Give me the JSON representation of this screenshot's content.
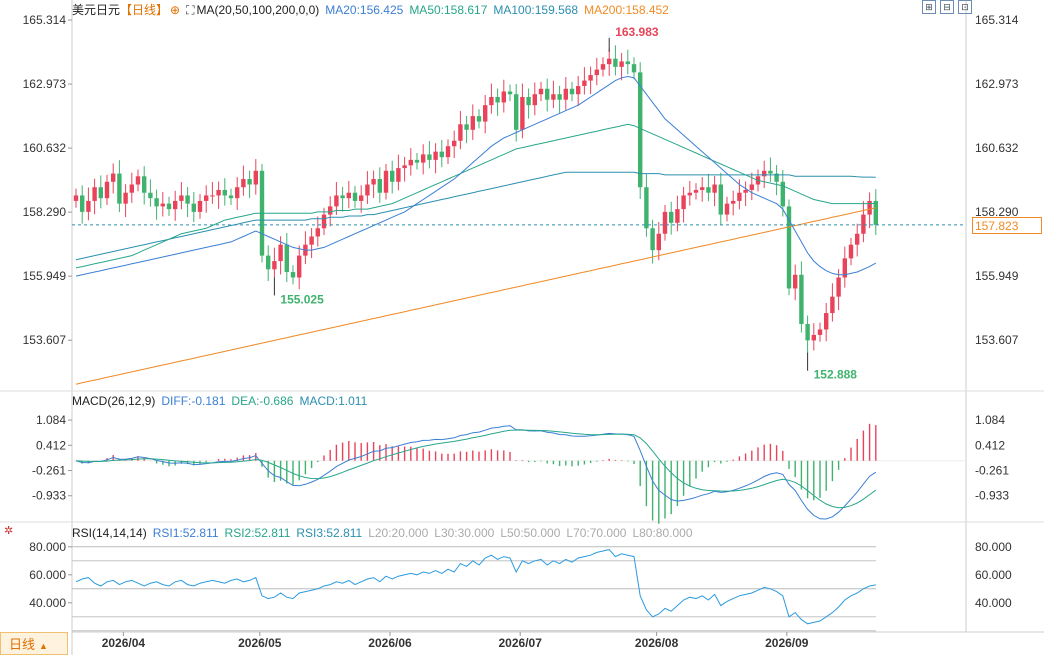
{
  "header": {
    "title": "美元日元",
    "period_tag": "【日线】",
    "ma_label": "MA(20,50,100,200,0,0)",
    "ma20": "MA20:156.425",
    "ma50": "MA50:158.617",
    "ma100": "MA100:159.568",
    "ma200": "MA200:158.452"
  },
  "macd_header": {
    "label": "MACD(26,12,9)",
    "diff": "DIFF:-0.181",
    "dea": "DEA:-0.686",
    "macd": "MACD:1.011"
  },
  "rsi_header": {
    "label": "RSI(14,14,14)",
    "rsi1": "RSI1:52.811",
    "rsi2": "RSI2:52.811",
    "rsi3": "RSI3:52.811",
    "l20": "L20:20.000",
    "l30": "L30:30.000",
    "l50": "L50:50.000",
    "l70": "L70:70.000",
    "l80": "L80:80.000"
  },
  "period_button": "日线",
  "last_price": "157.823",
  "colors": {
    "up": "#e8435a",
    "down": "#3fb36e",
    "ma20": "#3b7fd4",
    "ma50": "#27a68a",
    "ma100": "#2b8fb0",
    "ma200": "#f08a24",
    "diff": "#3b7fd4",
    "dea": "#27a68a"
  },
  "chart_data": [
    {
      "type": "candlestick",
      "name": "price",
      "yticks": [
        "165.314",
        "162.973",
        "160.632",
        "158.290",
        "155.949",
        "153.607"
      ],
      "ylim": [
        151.97,
        165.314
      ],
      "x_labels": [
        "2026/04",
        "2026/05",
        "2026/06",
        "2026/07",
        "2026/08",
        "2026/09"
      ],
      "last_value": 157.823,
      "max_label": "163.983",
      "min_label": "155.025",
      "min2_label": "152.888",
      "close": [
        158.9,
        158.3,
        158.7,
        159.2,
        158.8,
        159.4,
        159.7,
        158.6,
        159.0,
        159.3,
        159.6,
        159.0,
        158.8,
        158.5,
        158.6,
        158.4,
        158.7,
        158.9,
        158.6,
        158.3,
        158.7,
        158.9,
        158.9,
        159.1,
        158.9,
        158.8,
        159.2,
        159.5,
        159.3,
        159.8,
        156.7,
        156.2,
        156.5,
        157.1,
        156.1,
        155.9,
        156.7,
        157.1,
        157.4,
        157.7,
        158.2,
        158.5,
        158.9,
        158.8,
        159.0,
        158.7,
        158.9,
        159.3,
        159.5,
        159.0,
        159.8,
        159.4,
        159.9,
        160.0,
        160.2,
        160.1,
        160.4,
        160.2,
        160.5,
        160.3,
        160.7,
        160.9,
        161.5,
        161.3,
        161.8,
        161.6,
        162.2,
        162.5,
        162.3,
        162.7,
        162.6,
        161.3,
        162.5,
        162.2,
        162.6,
        162.8,
        162.4,
        162.6,
        162.4,
        162.8,
        162.6,
        162.9,
        163.1,
        163.3,
        163.5,
        163.7,
        163.9,
        163.6,
        163.8,
        163.7,
        163.4,
        159.2,
        157.7,
        156.9,
        157.5,
        158.3,
        157.9,
        158.4,
        158.9,
        159.0,
        159.1,
        159.2,
        159.0,
        159.3,
        158.2,
        158.6,
        158.7,
        159.0,
        159.1,
        159.3,
        159.6,
        159.8,
        159.7,
        159.4,
        158.5,
        155.5,
        156.0,
        154.2,
        153.6,
        153.8,
        154.0,
        154.6,
        155.2,
        155.9,
        156.6,
        157.1,
        157.5,
        158.2,
        158.7,
        157.823
      ],
      "ma20": [
        155.95,
        156.0,
        156.05,
        156.1,
        156.15,
        156.2,
        156.25,
        156.3,
        156.35,
        156.4,
        156.45,
        156.5,
        156.55,
        156.6,
        156.65,
        156.7,
        156.75,
        156.8,
        156.85,
        156.9,
        156.95,
        157.0,
        157.05,
        157.1,
        157.15,
        157.2,
        157.3,
        157.4,
        157.5,
        157.6,
        157.5,
        157.4,
        157.3,
        157.2,
        157.1,
        157.0,
        156.95,
        156.9,
        156.9,
        156.95,
        157.0,
        157.1,
        157.2,
        157.3,
        157.4,
        157.5,
        157.6,
        157.7,
        157.8,
        157.9,
        158.0,
        158.1,
        158.2,
        158.3,
        158.45,
        158.6,
        158.75,
        158.9,
        159.05,
        159.2,
        159.35,
        159.5,
        159.7,
        159.9,
        160.1,
        160.3,
        160.5,
        160.7,
        160.85,
        161.0,
        161.1,
        161.2,
        161.3,
        161.4,
        161.5,
        161.6,
        161.7,
        161.8,
        161.9,
        162.0,
        162.1,
        162.2,
        162.35,
        162.5,
        162.65,
        162.8,
        162.95,
        163.1,
        163.2,
        163.25,
        163.2,
        162.9,
        162.6,
        162.3,
        162.0,
        161.7,
        161.5,
        161.3,
        161.1,
        160.9,
        160.7,
        160.5,
        160.3,
        160.1,
        159.9,
        159.7,
        159.5,
        159.3,
        159.15,
        159.0,
        158.9,
        158.8,
        158.7,
        158.6,
        158.4,
        158.0,
        157.6,
        157.2,
        156.8,
        156.5,
        156.3,
        156.15,
        156.05,
        156.0,
        156.0,
        156.05,
        156.1,
        156.2,
        156.3,
        156.425
      ],
      "ma50": [
        156.25,
        156.3,
        156.35,
        156.4,
        156.45,
        156.5,
        156.55,
        156.6,
        156.65,
        156.7,
        156.8,
        156.9,
        157.0,
        157.1,
        157.2,
        157.3,
        157.4,
        157.5,
        157.55,
        157.6,
        157.65,
        157.7,
        157.8,
        157.9,
        158.0,
        158.05,
        158.1,
        158.15,
        158.2,
        158.25,
        158.25,
        158.25,
        158.25,
        158.25,
        158.25,
        158.25,
        158.25,
        158.25,
        158.25,
        158.3,
        158.3,
        158.3,
        158.35,
        158.35,
        158.35,
        158.4,
        158.4,
        158.4,
        158.45,
        158.5,
        158.55,
        158.6,
        158.7,
        158.8,
        158.9,
        159.0,
        159.1,
        159.2,
        159.3,
        159.4,
        159.5,
        159.6,
        159.7,
        159.8,
        159.9,
        160.0,
        160.1,
        160.2,
        160.3,
        160.4,
        160.5,
        160.6,
        160.65,
        160.7,
        160.75,
        160.8,
        160.85,
        160.9,
        160.95,
        161.0,
        161.05,
        161.1,
        161.15,
        161.2,
        161.25,
        161.3,
        161.35,
        161.4,
        161.45,
        161.5,
        161.45,
        161.35,
        161.25,
        161.15,
        161.05,
        160.95,
        160.85,
        160.75,
        160.65,
        160.55,
        160.45,
        160.35,
        160.25,
        160.15,
        160.05,
        159.95,
        159.85,
        159.75,
        159.65,
        159.55,
        159.45,
        159.4,
        159.35,
        159.3,
        159.25,
        159.15,
        159.05,
        158.95,
        158.85,
        158.75,
        158.7,
        158.65,
        158.6,
        158.6,
        158.6,
        158.6,
        158.6,
        158.6,
        158.6,
        158.617
      ],
      "ma100": [
        156.55,
        156.6,
        156.65,
        156.7,
        156.75,
        156.8,
        156.85,
        156.9,
        156.95,
        157.0,
        157.05,
        157.1,
        157.15,
        157.2,
        157.25,
        157.3,
        157.35,
        157.4,
        157.45,
        157.5,
        157.55,
        157.6,
        157.65,
        157.7,
        157.75,
        157.8,
        157.85,
        157.9,
        157.95,
        158.0,
        158.0,
        158.0,
        158.0,
        158.0,
        158.0,
        158.0,
        158.0,
        158.0,
        158.05,
        158.05,
        158.05,
        158.1,
        158.1,
        158.1,
        158.15,
        158.15,
        158.15,
        158.2,
        158.2,
        158.25,
        158.3,
        158.35,
        158.4,
        158.45,
        158.5,
        158.55,
        158.6,
        158.65,
        158.7,
        158.75,
        158.8,
        158.85,
        158.9,
        158.95,
        159.0,
        159.05,
        159.1,
        159.15,
        159.2,
        159.25,
        159.3,
        159.35,
        159.4,
        159.45,
        159.5,
        159.55,
        159.6,
        159.65,
        159.7,
        159.75,
        159.75,
        159.75,
        159.75,
        159.75,
        159.75,
        159.75,
        159.75,
        159.75,
        159.75,
        159.75,
        159.75,
        159.7,
        159.7,
        159.7,
        159.7,
        159.65,
        159.65,
        159.65,
        159.65,
        159.65,
        159.65,
        159.65,
        159.65,
        159.65,
        159.65,
        159.65,
        159.65,
        159.65,
        159.65,
        159.65,
        159.65,
        159.65,
        159.65,
        159.65,
        159.65,
        159.65,
        159.6,
        159.6,
        159.6,
        159.6,
        159.6,
        159.6,
        159.6,
        159.6,
        159.6,
        159.6,
        159.58,
        159.57,
        159.57,
        159.568
      ],
      "ma200": [
        152.0,
        152.05,
        152.1,
        152.15,
        152.2,
        152.25,
        152.3,
        152.35,
        152.4,
        152.45,
        152.5,
        152.55,
        152.6,
        152.65,
        152.7,
        152.75,
        152.8,
        152.85,
        152.9,
        152.95,
        153.0,
        153.05,
        153.1,
        153.15,
        153.2,
        153.25,
        153.3,
        153.35,
        153.4,
        153.45,
        153.5,
        153.55,
        153.6,
        153.65,
        153.7,
        153.75,
        153.8,
        153.85,
        153.9,
        153.95,
        154.0,
        154.05,
        154.1,
        154.15,
        154.2,
        154.25,
        154.3,
        154.35,
        154.4,
        154.45,
        154.5,
        154.55,
        154.6,
        154.65,
        154.7,
        154.75,
        154.8,
        154.85,
        154.9,
        154.95,
        155.0,
        155.05,
        155.1,
        155.15,
        155.2,
        155.25,
        155.3,
        155.35,
        155.4,
        155.45,
        155.5,
        155.55,
        155.6,
        155.65,
        155.7,
        155.75,
        155.8,
        155.85,
        155.9,
        155.95,
        156.0,
        156.05,
        156.1,
        156.15,
        156.2,
        156.25,
        156.3,
        156.35,
        156.4,
        156.45,
        156.5,
        156.55,
        156.6,
        156.65,
        156.7,
        156.75,
        156.8,
        156.85,
        156.9,
        156.95,
        157.0,
        157.05,
        157.1,
        157.15,
        157.2,
        157.25,
        157.3,
        157.35,
        157.4,
        157.45,
        157.5,
        157.55,
        157.6,
        157.65,
        157.7,
        157.75,
        157.8,
        157.85,
        157.9,
        157.95,
        158.0,
        158.05,
        158.1,
        158.15,
        158.2,
        158.25,
        158.3,
        158.35,
        158.4,
        158.452
      ]
    },
    {
      "type": "line",
      "name": "MACD",
      "yticks": [
        "1.084",
        "0.412",
        "-0.261",
        "-0.933"
      ],
      "ylim": [
        -1.5,
        1.3
      ],
      "diff_last": -0.181,
      "dea_last": -0.686,
      "macd_last": 1.011
    },
    {
      "type": "line",
      "name": "RSI",
      "yticks": [
        "80.000",
        "60.000",
        "40.000"
      ],
      "ylim": [
        22,
        82
      ],
      "levels": [
        80,
        70,
        50,
        30,
        20
      ],
      "rsi": [
        55,
        57,
        58,
        54,
        52,
        55,
        56,
        53,
        55,
        56,
        54,
        52,
        54,
        55,
        53,
        52,
        55,
        56,
        53,
        52,
        54,
        55,
        56,
        55,
        54,
        56,
        57,
        55,
        56,
        58,
        45,
        43,
        44,
        47,
        44,
        43,
        47,
        48,
        49,
        50,
        52,
        53,
        55,
        54,
        56,
        53,
        55,
        57,
        58,
        55,
        59,
        57,
        59,
        60,
        61,
        60,
        62,
        61,
        63,
        61,
        64,
        62,
        68,
        66,
        70,
        67,
        72,
        74,
        71,
        73,
        72,
        62,
        70,
        68,
        70,
        71,
        67,
        70,
        68,
        71,
        69,
        72,
        73,
        74,
        76,
        77,
        78,
        73,
        75,
        74,
        73,
        45,
        35,
        30,
        32,
        36,
        34,
        38,
        42,
        44,
        43,
        45,
        42,
        46,
        38,
        41,
        43,
        45,
        46,
        47,
        49,
        51,
        50,
        48,
        45,
        30,
        33,
        28,
        25,
        26,
        27,
        30,
        33,
        37,
        42,
        45,
        47,
        50,
        52,
        52.811
      ]
    }
  ]
}
